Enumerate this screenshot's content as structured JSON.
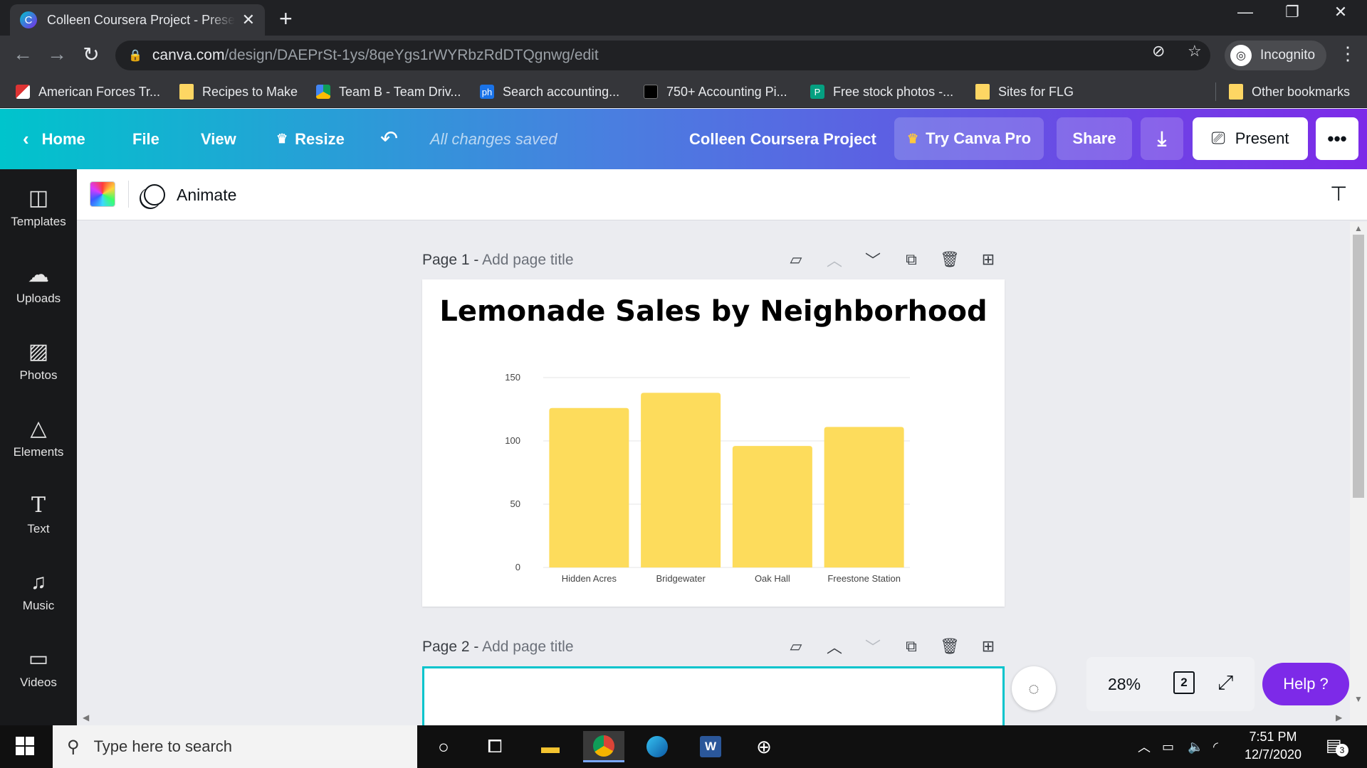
{
  "browser": {
    "tab_title": "Colleen Coursera Project - Present",
    "tab_icon": "C",
    "url_host": "canva.com",
    "url_path": "/design/DAEPrSt-1ys/8qeYgs1rWYRbzRdDTQgnwg/edit",
    "incognito_label": "Incognito",
    "bookmarks": [
      {
        "label": "American Forces Tr...",
        "icon": "flag-icon"
      },
      {
        "label": "Recipes to Make",
        "icon": "folder-icon"
      },
      {
        "label": "Team B - Team Driv...",
        "icon": "drive-icon"
      },
      {
        "label": "Search accounting...",
        "icon": "ph-icon"
      },
      {
        "label": "750+ Accounting Pi...",
        "icon": "site-icon"
      },
      {
        "label": "Free stock photos -...",
        "icon": "pexels-icon"
      },
      {
        "label": "Sites for FLG",
        "icon": "folder-icon"
      }
    ],
    "other_bookmarks": "Other bookmarks"
  },
  "canva_header": {
    "home": "Home",
    "file": "File",
    "view": "View",
    "resize": "Resize",
    "status": "All changes saved",
    "project_title": "Colleen Coursera Project",
    "try_pro": "Try Canva Pro",
    "share": "Share",
    "present": "Present"
  },
  "sidebar": {
    "items": [
      {
        "label": "Templates",
        "icon": "templates-icon"
      },
      {
        "label": "Uploads",
        "icon": "upload-cloud-icon"
      },
      {
        "label": "Photos",
        "icon": "image-icon"
      },
      {
        "label": "Elements",
        "icon": "shapes-icon"
      },
      {
        "label": "Text",
        "icon": "text-icon"
      },
      {
        "label": "Music",
        "icon": "music-note-icon"
      },
      {
        "label": "Videos",
        "icon": "video-icon"
      }
    ]
  },
  "edit_bar": {
    "animate": "Animate"
  },
  "pages": [
    {
      "number": "Page 1",
      "title_placeholder": "Add page title"
    },
    {
      "number": "Page 2",
      "title_placeholder": "Add page title"
    }
  ],
  "chart_data": {
    "type": "bar",
    "title": "Lemonade Sales by Neighborhood",
    "categories": [
      "Hidden Acres",
      "Bridgewater",
      "Oak Hall",
      "Freestone Station"
    ],
    "values": [
      126,
      138,
      96,
      111
    ],
    "ylim": [
      0,
      150
    ],
    "yticks": [
      0,
      50,
      100,
      150
    ],
    "xlabel": "",
    "ylabel": "",
    "grid": true,
    "bar_color": "#fddc5c"
  },
  "bottom_controls": {
    "zoom": "28%",
    "page_count": "2",
    "help": "Help ?"
  },
  "taskbar": {
    "search_placeholder": "Type here to search",
    "time": "7:51 PM",
    "date": "12/7/2020",
    "notifications": "3"
  }
}
